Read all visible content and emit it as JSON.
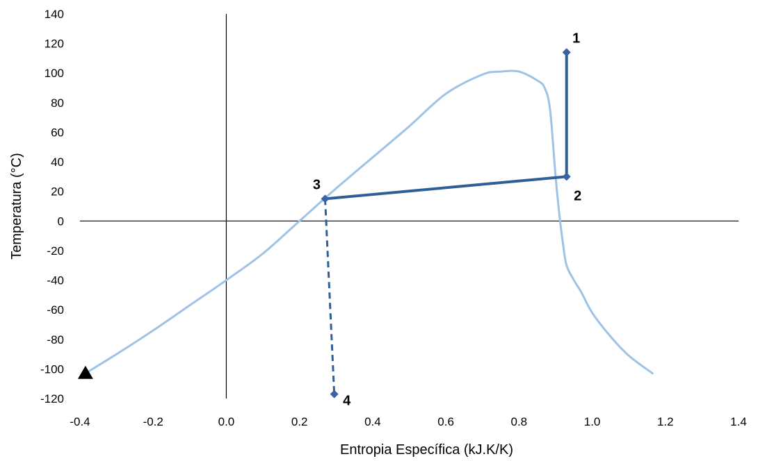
{
  "chart_data": {
    "type": "scatter",
    "title": "",
    "xlabel": "Entropia Específica (kJ.K/K)",
    "ylabel": "Temperatura (°C)",
    "xlim": [
      -0.4,
      1.4
    ],
    "ylim": [
      -120,
      140
    ],
    "xticks": [
      -0.4,
      -0.2,
      0.0,
      0.2,
      0.4,
      0.6,
      0.8,
      1.0,
      1.2,
      1.4
    ],
    "xtick_labels": [
      "-0.4",
      "-0.2",
      "0.0",
      "0.2",
      "0.4",
      "0.6",
      "0.8",
      "1.0",
      "1.2",
      "1.4"
    ],
    "yticks": [
      -120,
      -100,
      -80,
      -60,
      -40,
      -20,
      0,
      20,
      40,
      60,
      80,
      100,
      120,
      140
    ],
    "ytick_labels": [
      "-120",
      "-100",
      "-80",
      "-60",
      "-40",
      "-20",
      "0",
      "20",
      "40",
      "60",
      "80",
      "100",
      "120",
      "140"
    ],
    "grid": false,
    "legend": false,
    "saturation_dome": {
      "color": "#9dc3e6",
      "points": [
        [
          -0.385,
          -103
        ],
        [
          -0.3,
          -90
        ],
        [
          -0.2,
          -74
        ],
        [
          -0.1,
          -57
        ],
        [
          0.0,
          -40
        ],
        [
          0.1,
          -22
        ],
        [
          0.2,
          0
        ],
        [
          0.3,
          22
        ],
        [
          0.4,
          43
        ],
        [
          0.5,
          64
        ],
        [
          0.6,
          86
        ],
        [
          0.7,
          99
        ],
        [
          0.75,
          101
        ],
        [
          0.8,
          101
        ],
        [
          0.85,
          95
        ],
        [
          0.87,
          90
        ],
        [
          0.885,
          75
        ],
        [
          0.9,
          30
        ],
        [
          0.91,
          5
        ],
        [
          0.92,
          -15
        ],
        [
          0.93,
          -30
        ],
        [
          0.95,
          -40
        ],
        [
          0.97,
          -48
        ],
        [
          1.0,
          -62
        ],
        [
          1.05,
          -78
        ],
        [
          1.1,
          -91
        ],
        [
          1.165,
          -103
        ]
      ]
    },
    "cycle": {
      "color": "#2e5f96",
      "marker_color": "#3b62a2",
      "points": [
        {
          "label": "1",
          "s": 0.93,
          "T": 114
        },
        {
          "label": "2",
          "s": 0.93,
          "T": 30
        },
        {
          "label": "3",
          "s": 0.27,
          "T": 15
        },
        {
          "label": "4",
          "s": 0.295,
          "T": -117
        }
      ],
      "solid_segments": [
        [
          0,
          1
        ],
        [
          1,
          2
        ]
      ],
      "dashed_segments": [
        [
          2,
          3
        ]
      ]
    },
    "triangle_marker": {
      "s": -0.385,
      "T": -103,
      "color": "#000000"
    }
  }
}
